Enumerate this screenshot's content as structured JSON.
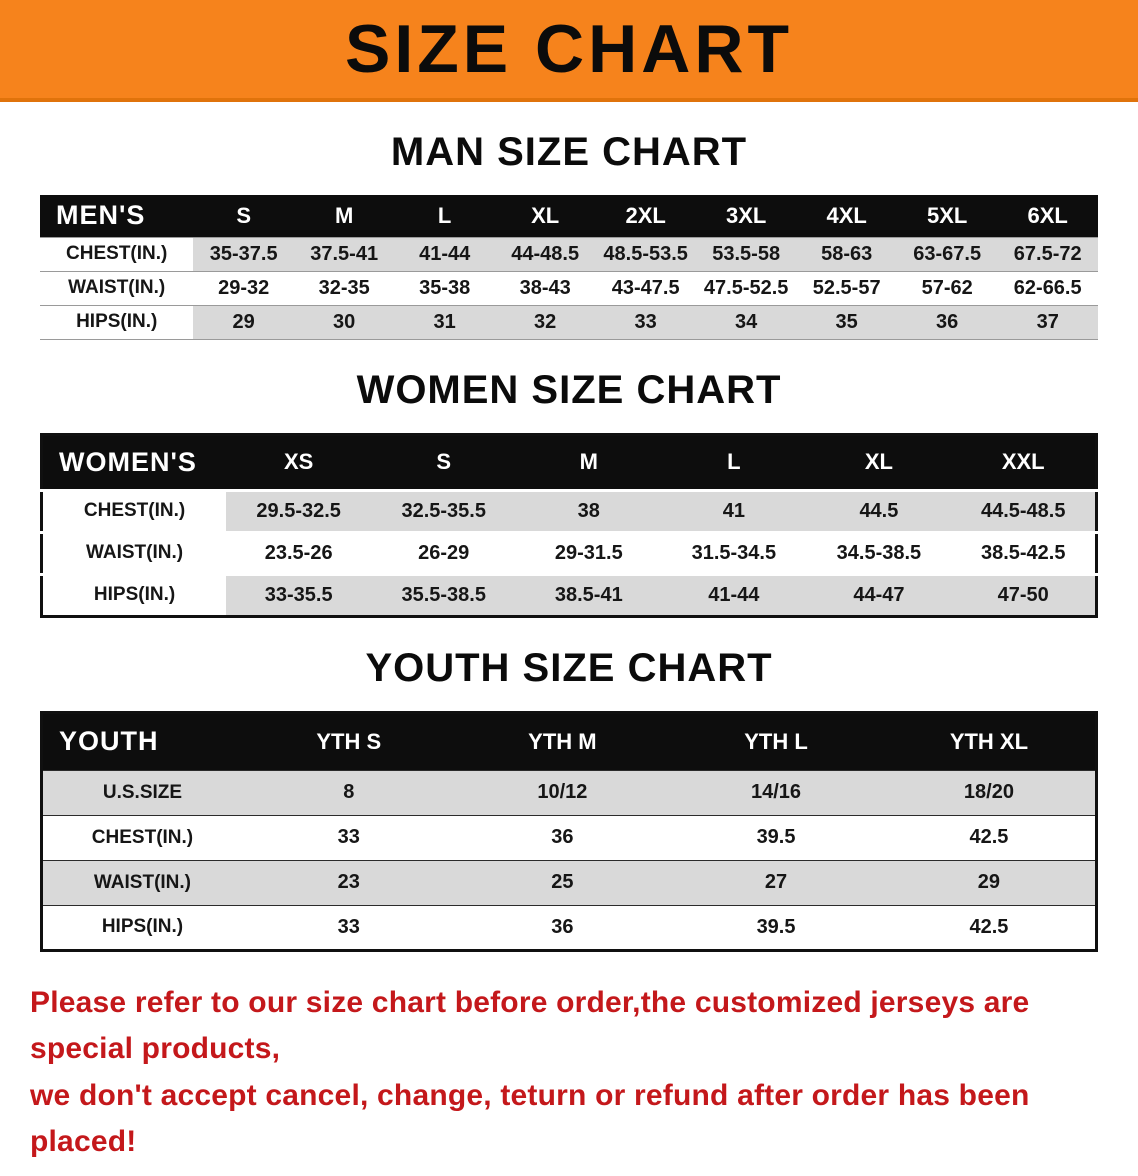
{
  "banner": {
    "title": "SIZE CHART"
  },
  "colors": {
    "banner_bg": "#f6831c",
    "table_header_bg": "#0d0d0d",
    "row_stripe": "#d9d9d9",
    "disclaimer_red": "#c4181b"
  },
  "sections": [
    {
      "heading": "MAN SIZE CHART",
      "table": {
        "header": [
          "MEN'S",
          "S",
          "M",
          "L",
          "XL",
          "2XL",
          "3XL",
          "4XL",
          "5XL",
          "6XL"
        ],
        "rows": [
          [
            "CHEST(IN.)",
            "35-37.5",
            "37.5-41",
            "41-44",
            "44-48.5",
            "48.5-53.5",
            "53.5-58",
            "58-63",
            "63-67.5",
            "67.5-72"
          ],
          [
            "WAIST(IN.)",
            "29-32",
            "32-35",
            "35-38",
            "38-43",
            "43-47.5",
            "47.5-52.5",
            "52.5-57",
            "57-62",
            "62-66.5"
          ],
          [
            "HIPS(IN.)",
            "29",
            "30",
            "31",
            "32",
            "33",
            "34",
            "35",
            "36",
            "37"
          ]
        ]
      }
    },
    {
      "heading": "WOMEN SIZE CHART",
      "table": {
        "header": [
          "WOMEN'S",
          "XS",
          "S",
          "M",
          "L",
          "XL",
          "XXL"
        ],
        "rows": [
          [
            "CHEST(IN.)",
            "29.5-32.5",
            "32.5-35.5",
            "38",
            "41",
            "44.5",
            "44.5-48.5"
          ],
          [
            "WAIST(IN.)",
            "23.5-26",
            "26-29",
            "29-31.5",
            "31.5-34.5",
            "34.5-38.5",
            "38.5-42.5"
          ],
          [
            "HIPS(IN.)",
            "33-35.5",
            "35.5-38.5",
            "38.5-41",
            "41-44",
            "44-47",
            "47-50"
          ]
        ]
      }
    },
    {
      "heading": "YOUTH SIZE CHART",
      "table": {
        "header": [
          "YOUTH",
          "YTH S",
          "YTH M",
          "YTH L",
          "YTH XL"
        ],
        "rows": [
          [
            "U.S.SIZE",
            "8",
            "10/12",
            "14/16",
            "18/20"
          ],
          [
            "CHEST(IN.)",
            "33",
            "36",
            "39.5",
            "42.5"
          ],
          [
            "WAIST(IN.)",
            "23",
            "25",
            "27",
            "29"
          ],
          [
            "HIPS(IN.)",
            "33",
            "36",
            "39.5",
            "42.5"
          ]
        ]
      }
    }
  ],
  "disclaimer": {
    "line1": "Please refer to our size chart before order,the customized jerseys are special products,",
    "line2": "we don't accept cancel, change, teturn or refund after order has been placed!"
  }
}
